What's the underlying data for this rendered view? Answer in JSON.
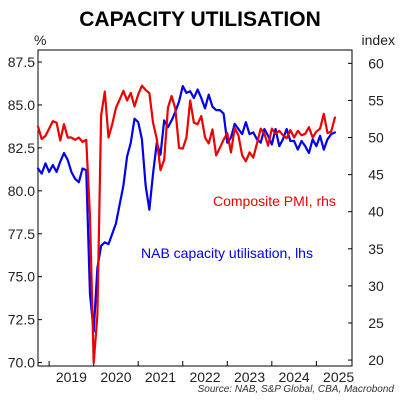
{
  "chart_data": {
    "type": "line",
    "title": "CAPACITY UTILISATION",
    "source": "Source: NAB, S&P Global, CBA, Macrobond",
    "left_axis": {
      "unit": "%",
      "range": [
        69.8,
        88.2
      ],
      "ticks": [
        "87.5",
        "85.0",
        "82.5",
        "80.0",
        "77.5",
        "75.0",
        "72.5",
        "70.0"
      ]
    },
    "right_axis": {
      "unit": "index",
      "range": [
        19.2,
        61.8
      ],
      "ticks": [
        "60",
        "55",
        "50",
        "45",
        "40",
        "35",
        "30",
        "25",
        "20"
      ]
    },
    "x_axis": {
      "range": [
        2018.75,
        2025.8
      ],
      "year_labels": [
        "2019",
        "2020",
        "2021",
        "2022",
        "2023",
        "2024",
        "2025"
      ]
    },
    "series": [
      {
        "name": "NAB capacity utilisation, lhs",
        "axis": "left",
        "color": "#0000ee",
        "x": [
          2018.75,
          2018.833,
          2018.917,
          2019.0,
          2019.083,
          2019.167,
          2019.25,
          2019.333,
          2019.417,
          2019.5,
          2019.583,
          2019.667,
          2019.75,
          2019.833,
          2019.917,
          2020.0,
          2020.083,
          2020.167,
          2020.25,
          2020.333,
          2020.417,
          2020.5,
          2020.583,
          2020.667,
          2020.75,
          2020.833,
          2020.917,
          2021.0,
          2021.083,
          2021.167,
          2021.25,
          2021.333,
          2021.417,
          2021.5,
          2021.583,
          2021.667,
          2021.75,
          2021.833,
          2021.917,
          2022.0,
          2022.083,
          2022.167,
          2022.25,
          2022.333,
          2022.417,
          2022.5,
          2022.583,
          2022.667,
          2022.75,
          2022.833,
          2022.917,
          2023.0,
          2023.083,
          2023.167,
          2023.25,
          2023.333,
          2023.417,
          2023.5,
          2023.583,
          2023.667,
          2023.75,
          2023.833,
          2023.917,
          2024.0,
          2024.083,
          2024.167,
          2024.25,
          2024.333,
          2024.417,
          2024.5,
          2024.583,
          2024.667,
          2024.75,
          2024.833,
          2024.917,
          2025.0,
          2025.083,
          2025.167,
          2025.25,
          2025.333,
          2025.417
        ],
        "values": [
          81.3,
          81.0,
          81.6,
          81.1,
          81.5,
          81.1,
          81.7,
          82.2,
          81.8,
          81.1,
          80.7,
          80.5,
          81.3,
          81.2,
          74.0,
          71.8,
          75.5,
          76.8,
          77.0,
          76.9,
          77.5,
          78.1,
          79.2,
          80.3,
          82.0,
          82.8,
          84.2,
          84.0,
          83.0,
          80.3,
          78.9,
          81.0,
          82.8,
          82.1,
          84.1,
          83.7,
          84.1,
          84.6,
          85.2,
          86.1,
          85.7,
          85.8,
          85.4,
          85.9,
          85.4,
          84.8,
          85.6,
          84.9,
          84.7,
          84.7,
          84.5,
          82.8,
          83.1,
          83.9,
          83.6,
          83.3,
          84.0,
          83.3,
          83.4,
          83.0,
          82.8,
          83.6,
          83.2,
          82.7,
          83.6,
          82.6,
          83.0,
          83.6,
          82.9,
          82.9,
          82.4,
          82.9,
          82.6,
          82.2,
          83.0,
          82.6,
          83.2,
          82.4,
          83.0,
          83.3,
          83.4
        ]
      },
      {
        "name": "Composite PMI, rhs",
        "axis": "right",
        "color": "#ee0000",
        "x": [
          2018.75,
          2018.833,
          2018.917,
          2019.0,
          2019.083,
          2019.167,
          2019.25,
          2019.333,
          2019.417,
          2019.5,
          2019.583,
          2019.667,
          2019.75,
          2019.833,
          2019.917,
          2020.0,
          2020.083,
          2020.167,
          2020.25,
          2020.333,
          2020.417,
          2020.5,
          2020.583,
          2020.667,
          2020.75,
          2020.833,
          2020.917,
          2021.0,
          2021.083,
          2021.167,
          2021.25,
          2021.333,
          2021.417,
          2021.5,
          2021.583,
          2021.667,
          2021.75,
          2021.833,
          2021.917,
          2022.0,
          2022.083,
          2022.167,
          2022.25,
          2022.333,
          2022.417,
          2022.5,
          2022.583,
          2022.667,
          2022.75,
          2022.833,
          2022.917,
          2023.0,
          2023.083,
          2023.167,
          2023.25,
          2023.333,
          2023.417,
          2023.5,
          2023.583,
          2023.667,
          2023.75,
          2023.833,
          2023.917,
          2024.0,
          2024.083,
          2024.167,
          2024.25,
          2024.333,
          2024.417,
          2024.5,
          2024.583,
          2024.667,
          2024.75,
          2024.833,
          2024.917,
          2025.0,
          2025.083,
          2025.167,
          2025.25,
          2025.333,
          2025.417
        ],
        "values": [
          51.5,
          49.8,
          50.2,
          51.2,
          52.2,
          52.0,
          49.6,
          51.8,
          50.0,
          50.0,
          49.7,
          50.0,
          49.4,
          49.7,
          39.4,
          19.6,
          26.0,
          53.0,
          56.2,
          50.0,
          51.8,
          54.0,
          55.1,
          56.3,
          55.0,
          56.0,
          54.2,
          55.8,
          57.0,
          56.4,
          56.0,
          52.0,
          49.8,
          45.6,
          47.0,
          54.0,
          55.6,
          53.9,
          48.6,
          48.5,
          50.0,
          55.0,
          52.0,
          51.8,
          52.9,
          50.0,
          49.2,
          51.1,
          47.6,
          48.6,
          49.7,
          50.6,
          48.0,
          51.3,
          50.3,
          47.6,
          46.8,
          48.0,
          47.3,
          49.2,
          51.2,
          50.5,
          48.9,
          51.2,
          50.5,
          50.9,
          50.3,
          49.9,
          51.0,
          50.0,
          50.9,
          50.3,
          50.5,
          51.4,
          50.0,
          50.8,
          51.2,
          53.2,
          50.6,
          50.8,
          52.7
        ]
      }
    ],
    "annotations": [
      {
        "series": "Composite PMI, rhs",
        "text": "Composite PMI, rhs",
        "color": "#ee0000"
      },
      {
        "series": "NAB capacity utilisation, lhs",
        "text": "NAB capacity utilisation, lhs",
        "color": "#0000ee"
      }
    ],
    "grid": false,
    "legend": "inline labels"
  }
}
